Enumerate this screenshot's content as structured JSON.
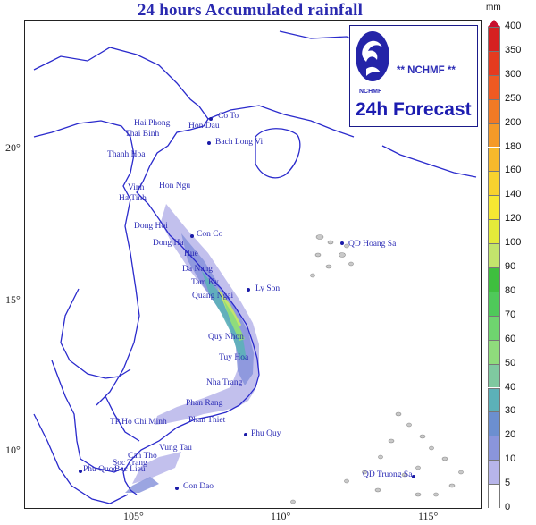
{
  "title": "24 hours Accumulated rainfall",
  "logo": {
    "agency": "** NCHMF **",
    "small_mark": "NCHMF",
    "forecast_label": "24h Forecast",
    "emblem_icon": "nchmf-emblem-icon"
  },
  "colorbar": {
    "unit": "mm",
    "ticks": [
      "400",
      "350",
      "300",
      "250",
      "200",
      "180",
      "160",
      "140",
      "120",
      "100",
      "90",
      "80",
      "70",
      "60",
      "50",
      "40",
      "30",
      "20",
      "10",
      "5",
      "0"
    ],
    "colors": [
      "#c8102e",
      "#d62020",
      "#e53b1f",
      "#ef5a22",
      "#f27a25",
      "#f59a28",
      "#f7b92b",
      "#f8d22e",
      "#f6e832",
      "#e4ea3a",
      "#c3e46c",
      "#3fbf3f",
      "#4fc95a",
      "#6fd46f",
      "#8fdc7c",
      "#7fc9a0",
      "#5cb1b8",
      "#6c8fd0",
      "#8a95dc",
      "#b7b5ea",
      "#ffffff"
    ]
  },
  "axes": {
    "latitude": [
      "20°",
      "15°",
      "10°"
    ],
    "longitude": [
      "105°",
      "110°",
      "115°"
    ]
  },
  "places": [
    {
      "name": "Co To"
    },
    {
      "name": "Hai Phong"
    },
    {
      "name": "Hon Dau"
    },
    {
      "name": "Thai Binh"
    },
    {
      "name": "Bach Long Vi"
    },
    {
      "name": "Thanh Hoa"
    },
    {
      "name": "Vinh"
    },
    {
      "name": "Hon Ngu"
    },
    {
      "name": "Ha Tinh"
    },
    {
      "name": "Dong Hoi"
    },
    {
      "name": "Con Co"
    },
    {
      "name": "Dong Ha"
    },
    {
      "name": "Hue"
    },
    {
      "name": "Da Nang"
    },
    {
      "name": "Tam Ky"
    },
    {
      "name": "Ly Son"
    },
    {
      "name": "Quang Ngai"
    },
    {
      "name": "Quy Nhon"
    },
    {
      "name": "Tuy Hoa"
    },
    {
      "name": "Nha Trang"
    },
    {
      "name": "Phan Rang"
    },
    {
      "name": "Phan Thiet"
    },
    {
      "name": "TP Ho Chi Minh"
    },
    {
      "name": "Vung Tau"
    },
    {
      "name": "Phu Quy"
    },
    {
      "name": "Can Tho"
    },
    {
      "name": "Soc Trang"
    },
    {
      "name": "Phu Quoc"
    },
    {
      "name": "Bac Lieu"
    },
    {
      "name": "Con Dao"
    },
    {
      "name": "QD Hoang Sa"
    },
    {
      "name": "QD Truong Sa"
    }
  ]
}
